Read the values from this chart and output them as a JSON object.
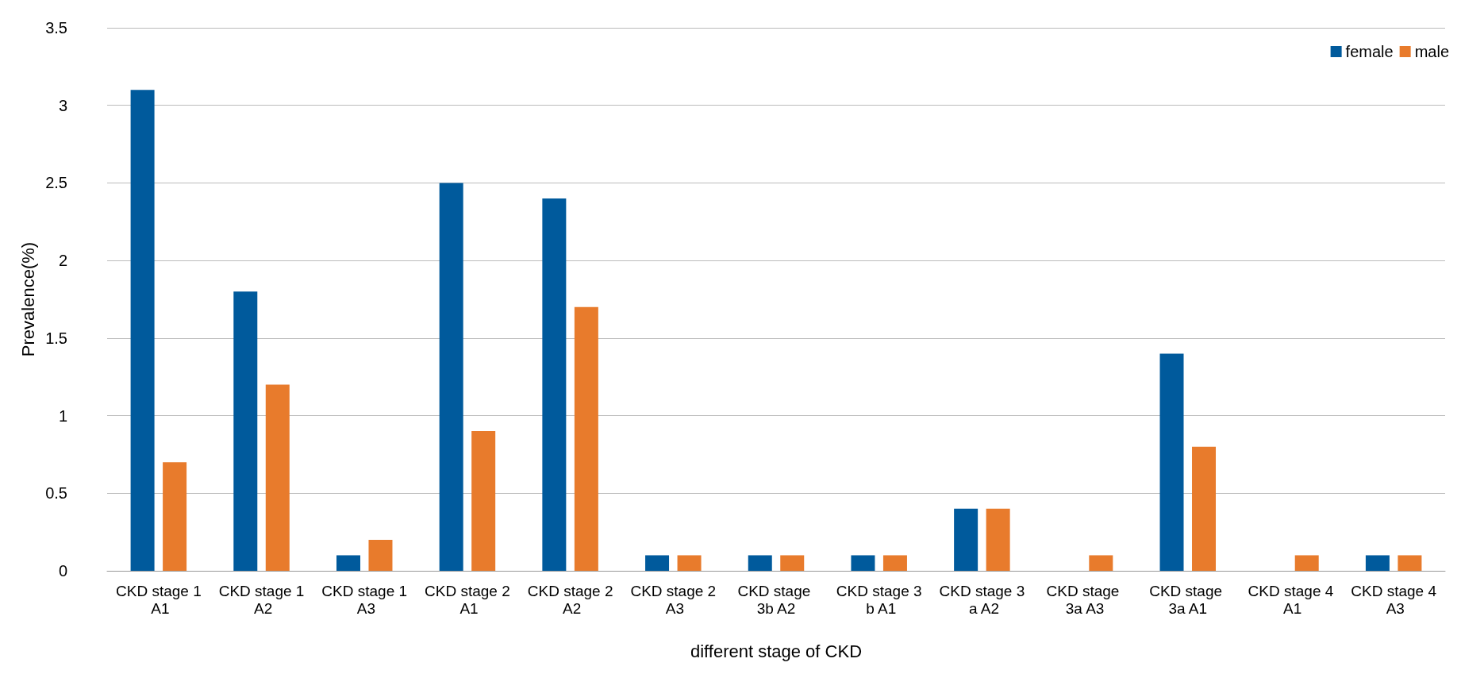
{
  "chart_data": {
    "type": "bar",
    "xlabel": "different stage of CKD",
    "ylabel": "Prevalence(%)",
    "categories": [
      "CKD stage 1 A1",
      "CKD stage 1 A2",
      "CKD stage 1 A3",
      "CKD stage 2 A1",
      "CKD stage 2 A2",
      "CKD stage 2 A3",
      "CKD stage 3b A2",
      "CKD stage 3 b A1",
      "CKD stage 3 a A2",
      "CKD stage 3a A3",
      "CKD stage 3a A1",
      "CKD stage 4 A1",
      "CKD stage 4 A3"
    ],
    "series": [
      {
        "name": "female",
        "color": "#005a9c",
        "values": [
          3.1,
          1.8,
          0.1,
          2.5,
          2.4,
          0.1,
          0.1,
          0.1,
          0.4,
          0,
          1.4,
          0,
          0.1
        ]
      },
      {
        "name": "male",
        "color": "#e87b2c",
        "values": [
          0.7,
          1.2,
          0.2,
          0.9,
          1.7,
          0.1,
          0.1,
          0.1,
          0.4,
          0.1,
          0.8,
          0.1,
          0.1
        ]
      }
    ],
    "ylim": [
      0,
      3.5
    ],
    "yticks": [
      0,
      0.5,
      1,
      1.5,
      2,
      2.5,
      3,
      3.5
    ],
    "grid": "y",
    "legend": "top right"
  }
}
